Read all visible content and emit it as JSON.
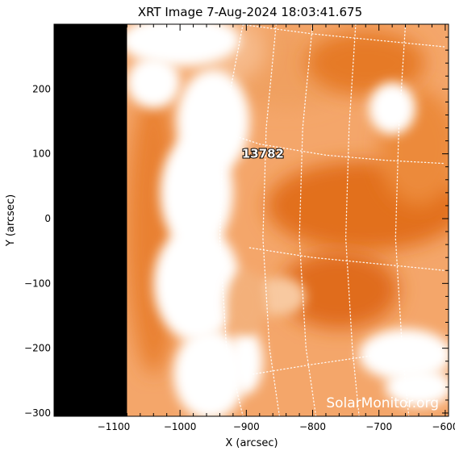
{
  "chart_data": {
    "type": "heatmap",
    "title": "XRT Image   7-Aug-2024  18:03:41.675",
    "xlabel": "X (arcsec)",
    "ylabel": "Y (arcsec)",
    "xlim": [
      -1190,
      -595
    ],
    "ylim": [
      -305,
      300
    ],
    "xticks": [
      -1100,
      -1000,
      -900,
      -800,
      -700,
      -600
    ],
    "xtick_labels": [
      "−1100",
      "−1000",
      "−900",
      "−800",
      "−700",
      "−600"
    ],
    "yticks": [
      -300,
      -200,
      -100,
      0,
      100,
      200
    ],
    "ytick_labels": [
      "−300",
      "−200",
      "−100",
      "0",
      "100",
      "200"
    ],
    "off_disk_x_max": -1080,
    "colormap": [
      "#000000",
      "#e8741c",
      "#ffffff"
    ],
    "background_color": "#f4a66a",
    "annotations": [
      {
        "label": "13782",
        "x": -875,
        "y": 100
      }
    ],
    "grid": "heliographic dotted"
  },
  "watermark": "SolarMonitor.org"
}
